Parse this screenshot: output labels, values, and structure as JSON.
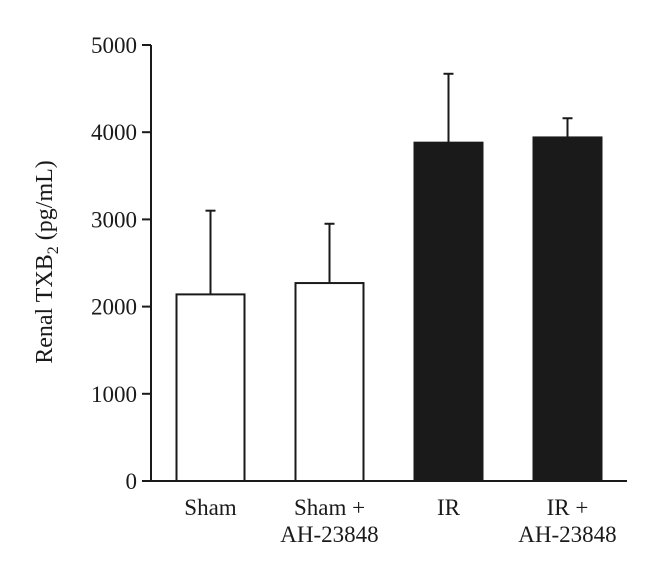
{
  "chart_data": {
    "type": "bar",
    "categories": [
      [
        "Sham"
      ],
      [
        "Sham +",
        "AH-23848"
      ],
      [
        "IR"
      ],
      [
        "IR +",
        "AH-23848"
      ]
    ],
    "values": [
      2140,
      2270,
      3880,
      3940
    ],
    "error_upper": [
      3100,
      2950,
      4670,
      4160
    ],
    "bar_colors": [
      "#ffffff",
      "#ffffff",
      "#1a1a1a",
      "#1a1a1a"
    ],
    "ylabel": "Renal TXB",
    "ylabel_sub": "2",
    "ylabel_unit": " (pg/mL)",
    "xlabel": "",
    "ylim": [
      0,
      5000
    ],
    "yticks": [
      0,
      1000,
      2000,
      3000,
      4000,
      5000
    ],
    "grid": false
  }
}
